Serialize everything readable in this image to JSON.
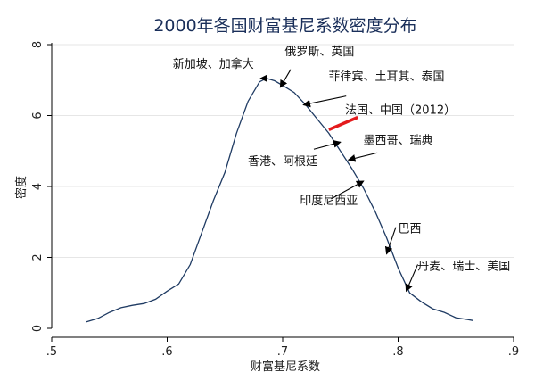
{
  "chart_data": {
    "type": "line",
    "title": "2000年各国财富基尼系数密度分布",
    "xlabel": "财富基尼系数",
    "ylabel": "密度",
    "xlim": [
      0.5,
      0.9
    ],
    "ylim": [
      0,
      8
    ],
    "xticks": [
      {
        "value": 0.5,
        "label": ".5"
      },
      {
        "value": 0.6,
        "label": ".6"
      },
      {
        "value": 0.7,
        "label": ".7"
      },
      {
        "value": 0.8,
        "label": ".8"
      },
      {
        "value": 0.9,
        "label": ".9"
      }
    ],
    "yticks": [
      {
        "value": 0,
        "label": "0"
      },
      {
        "value": 2,
        "label": "2"
      },
      {
        "value": 4,
        "label": "4"
      },
      {
        "value": 6,
        "label": "6"
      },
      {
        "value": 8,
        "label": "8"
      }
    ],
    "grid": true,
    "series": [
      {
        "color": "#1f3b63",
        "points": [
          [
            0.53,
            0.18
          ],
          [
            0.54,
            0.28
          ],
          [
            0.55,
            0.45
          ],
          [
            0.56,
            0.58
          ],
          [
            0.57,
            0.65
          ],
          [
            0.58,
            0.7
          ],
          [
            0.59,
            0.82
          ],
          [
            0.6,
            1.05
          ],
          [
            0.61,
            1.25
          ],
          [
            0.62,
            1.8
          ],
          [
            0.63,
            2.7
          ],
          [
            0.64,
            3.6
          ],
          [
            0.65,
            4.4
          ],
          [
            0.66,
            5.5
          ],
          [
            0.67,
            6.4
          ],
          [
            0.68,
            6.95
          ],
          [
            0.686,
            7.05
          ],
          [
            0.693,
            6.98
          ],
          [
            0.7,
            6.85
          ],
          [
            0.71,
            6.65
          ],
          [
            0.72,
            6.3
          ],
          [
            0.73,
            5.9
          ],
          [
            0.74,
            5.5
          ],
          [
            0.75,
            5.0
          ],
          [
            0.76,
            4.5
          ],
          [
            0.77,
            3.95
          ],
          [
            0.78,
            3.3
          ],
          [
            0.79,
            2.55
          ],
          [
            0.8,
            1.7
          ],
          [
            0.81,
            1.0
          ],
          [
            0.82,
            0.75
          ],
          [
            0.83,
            0.55
          ],
          [
            0.84,
            0.45
          ],
          [
            0.85,
            0.3
          ],
          [
            0.86,
            0.25
          ],
          [
            0.865,
            0.22
          ]
        ]
      }
    ],
    "annotations": [
      {
        "text": "新加坡、加拿大",
        "tx": 0.64,
        "ty": 7.35,
        "ax1": 0.682,
        "ay1": 7.05,
        "ax2": 0.681,
        "ay2": 7.05,
        "color": "#000000"
      },
      {
        "text": "俄罗斯、英国",
        "tx": 0.732,
        "ty": 7.7,
        "ax1": 0.707,
        "ay1": 7.3,
        "ax2": 0.698,
        "ay2": 6.8,
        "color": "#000000"
      },
      {
        "text": "菲律宾、土耳其、泰国",
        "tx": 0.79,
        "ty": 7.0,
        "ax1": 0.755,
        "ay1": 6.55,
        "ax2": 0.718,
        "ay2": 6.3,
        "color": "#000000"
      },
      {
        "text": "法国、中国（2012）",
        "tx": 0.802,
        "ty": 6.05,
        "ax1": 0.765,
        "ay1": 5.95,
        "ax2": 0.74,
        "ay2": 5.6,
        "color": "#e41a1c"
      },
      {
        "text": "墨西哥、瑞典",
        "tx": 0.8,
        "ty": 5.2,
        "ax1": 0.782,
        "ay1": 4.95,
        "ax2": 0.757,
        "ay2": 4.75,
        "color": "#000000"
      },
      {
        "text": "香港、阿根廷",
        "tx": 0.7,
        "ty": 4.6,
        "ax1": 0.727,
        "ay1": 5.05,
        "ax2": 0.75,
        "ay2": 5.25,
        "color": "#000000"
      },
      {
        "text": "印度尼西亚",
        "tx": 0.74,
        "ty": 3.5,
        "ax1": 0.742,
        "ay1": 3.65,
        "ax2": 0.77,
        "ay2": 4.15,
        "color": "#000000"
      },
      {
        "text": "巴西",
        "tx": 0.81,
        "ty": 2.7,
        "ax1": 0.798,
        "ay1": 2.85,
        "ax2": 0.79,
        "ay2": 2.1,
        "color": "#000000"
      },
      {
        "text": "丹麦、瑞士、美国",
        "tx": 0.857,
        "ty": 1.65,
        "ax1": 0.817,
        "ay1": 1.8,
        "ax2": 0.807,
        "ay2": 1.05,
        "color": "#000000"
      }
    ]
  }
}
